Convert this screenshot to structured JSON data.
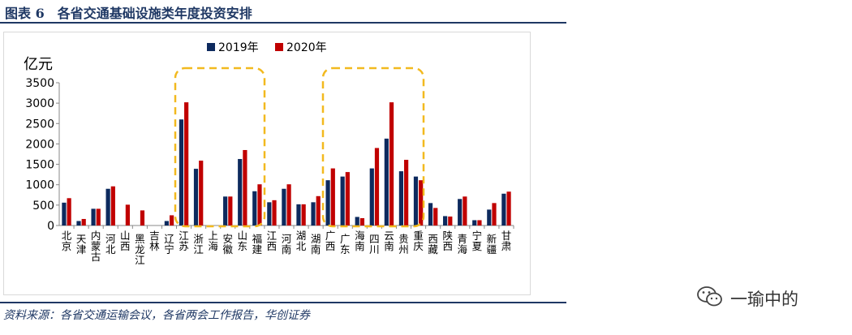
{
  "header": {
    "title": "图表 6　各省交通基础设施类年度投资安排"
  },
  "footer": {
    "source": "资料来源：各省交通运输会议，各省两会工作报告，华创证券"
  },
  "watermark": {
    "text": "一瑜中的",
    "icon": "wechat-icon"
  },
  "chart_data": {
    "type": "bar",
    "ylabel": "亿元",
    "ylim": [
      0,
      3500
    ],
    "yticks": [
      0,
      500,
      1000,
      1500,
      2000,
      2500,
      3000,
      3500
    ],
    "grid": false,
    "legend_position": "top-center",
    "colors": {
      "2019年": "#0d2a5e",
      "2020年": "#c00000",
      "highlight": "#f2b91f"
    },
    "categories": [
      "北京",
      "天津",
      "内蒙古",
      "河北",
      "山西",
      "黑龙江",
      "吉林",
      "辽宁",
      "江苏",
      "浙江",
      "上海",
      "安徽",
      "山东",
      "福建",
      "江西",
      "河南",
      "湖北",
      "湖南",
      "广西",
      "广东",
      "海南",
      "四川",
      "云南",
      "贵州",
      "重庆",
      "西藏",
      "陕西",
      "青海",
      "宁夏",
      "新疆",
      "甘肃"
    ],
    "series": [
      {
        "name": "2019年",
        "values": [
          560,
          110,
          410,
          900,
          null,
          null,
          null,
          110,
          2600,
          1390,
          null,
          710,
          1630,
          840,
          570,
          900,
          520,
          570,
          1110,
          1200,
          210,
          1400,
          2130,
          1330,
          1200,
          550,
          230,
          650,
          130,
          390,
          780
        ]
      },
      {
        "name": "2020年",
        "values": [
          670,
          160,
          410,
          960,
          510,
          370,
          null,
          250,
          3020,
          1590,
          null,
          710,
          1850,
          1010,
          620,
          1010,
          520,
          720,
          1400,
          1310,
          180,
          1900,
          3020,
          1610,
          1110,
          430,
          220,
          710,
          130,
          550,
          830
        ]
      }
    ]
  }
}
